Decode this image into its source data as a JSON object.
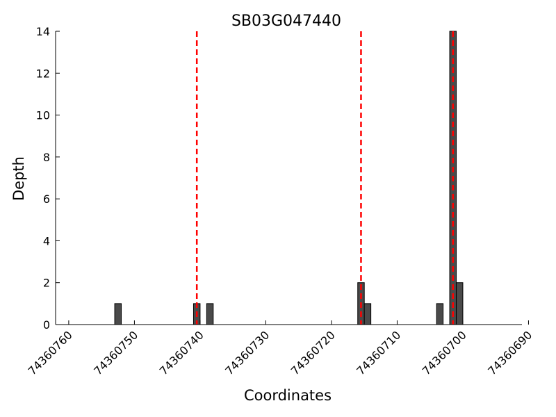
{
  "chart_data": {
    "type": "bar",
    "title": "SB03G047440",
    "xlabel": "Coordinates",
    "ylabel": "Depth",
    "x_inverted": true,
    "xlim": [
      74360691,
      74360762
    ],
    "ylim": [
      0,
      14
    ],
    "xticks": [
      74360760,
      74360750,
      74360740,
      74360730,
      74360720,
      74360710,
      74360700,
      74360690
    ],
    "yticks": [
      0,
      2,
      4,
      6,
      8,
      10,
      12,
      14
    ],
    "bar_width": 1,
    "bars": [
      {
        "x": 74360752,
        "depth": 1
      },
      {
        "x": 74360740,
        "depth": 1
      },
      {
        "x": 74360738,
        "depth": 1
      },
      {
        "x": 74360715,
        "depth": 2
      },
      {
        "x": 74360714,
        "depth": 1
      },
      {
        "x": 74360703,
        "depth": 1
      },
      {
        "x": 74360701,
        "depth": 14
      },
      {
        "x": 74360700,
        "depth": 2
      }
    ],
    "reference_lines": [
      74360740,
      74360715,
      74360701
    ],
    "colors": {
      "bar": "#4a4a4a",
      "reference_line": "#ff0000"
    }
  }
}
